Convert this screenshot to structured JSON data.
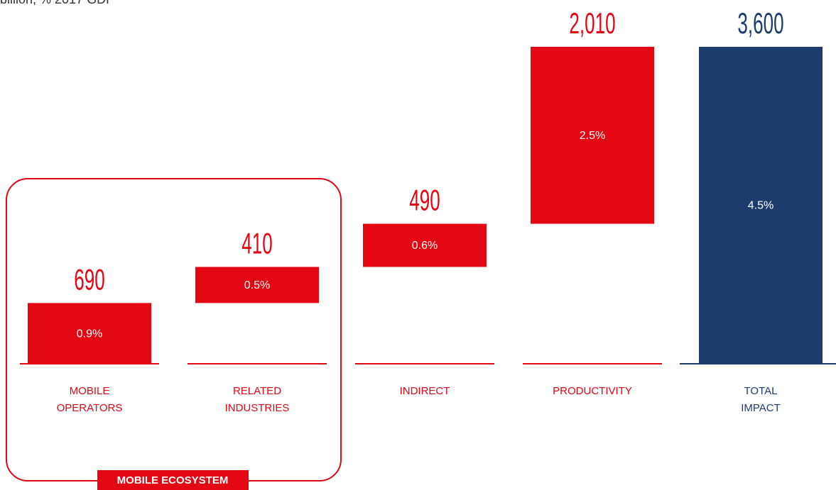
{
  "chart_data": {
    "type": "waterfall",
    "subtitle": "billion, % 2017 GDP",
    "categories": [
      [
        "MOBILE",
        "OPERATORS"
      ],
      [
        "RELATED",
        "INDUSTRIES"
      ],
      [
        "INDIRECT"
      ],
      [
        "PRODUCTIVITY"
      ],
      [
        "TOTAL",
        "IMPACT"
      ]
    ],
    "values": [
      690,
      410,
      490,
      2010,
      3600
    ],
    "value_labels": [
      "690",
      "410",
      "490",
      "2,010",
      "3,600"
    ],
    "gdp_share": [
      0.9,
      0.5,
      0.6,
      2.5,
      4.5
    ],
    "gdp_share_labels": [
      "0.9%",
      "0.5%",
      "0.6%",
      "2.5%",
      "4.5%"
    ],
    "total": [
      false,
      false,
      false,
      false,
      true
    ],
    "color": "#e30613",
    "total_color": "#1c3c6e",
    "group_label": "MOBILE ECOSYSTEM"
  }
}
